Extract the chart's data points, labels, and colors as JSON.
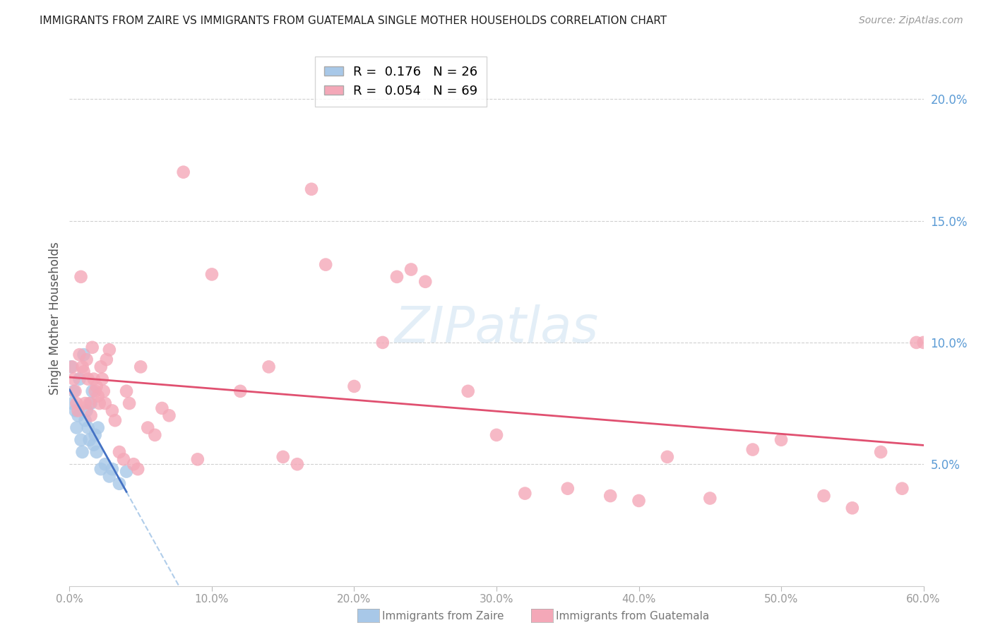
{
  "title": "IMMIGRANTS FROM ZAIRE VS IMMIGRANTS FROM GUATEMALA SINGLE MOTHER HOUSEHOLDS CORRELATION CHART",
  "source": "Source: ZipAtlas.com",
  "ylabel": "Single Mother Households",
  "xlim": [
    0.0,
    0.6
  ],
  "ylim": [
    0.0,
    0.22
  ],
  "zaire_R": 0.176,
  "zaire_N": 26,
  "guatemala_R": 0.054,
  "guatemala_N": 69,
  "zaire_color": "#a8c8e8",
  "guatemala_color": "#f4a8b8",
  "zaire_line_color": "#4472c4",
  "zaire_dash_color": "#a8c8e8",
  "guatemala_line_color": "#e05070",
  "bg_color": "#ffffff",
  "grid_color": "#d0d0d0",
  "tick_color_right": "#5b9bd5",
  "zaire_x": [
    0.001,
    0.002,
    0.003,
    0.004,
    0.005,
    0.006,
    0.007,
    0.008,
    0.009,
    0.01,
    0.011,
    0.012,
    0.013,
    0.014,
    0.015,
    0.016,
    0.017,
    0.018,
    0.019,
    0.02,
    0.022,
    0.025,
    0.028,
    0.03,
    0.035,
    0.04
  ],
  "zaire_y": [
    0.09,
    0.075,
    0.08,
    0.072,
    0.065,
    0.07,
    0.085,
    0.06,
    0.055,
    0.095,
    0.068,
    0.072,
    0.065,
    0.06,
    0.075,
    0.08,
    0.058,
    0.062,
    0.055,
    0.065,
    0.048,
    0.05,
    0.045,
    0.048,
    0.042,
    0.047
  ],
  "guatemala_x": [
    0.002,
    0.003,
    0.004,
    0.005,
    0.006,
    0.007,
    0.008,
    0.009,
    0.01,
    0.011,
    0.012,
    0.013,
    0.014,
    0.015,
    0.016,
    0.017,
    0.018,
    0.019,
    0.02,
    0.021,
    0.022,
    0.023,
    0.024,
    0.025,
    0.026,
    0.028,
    0.03,
    0.032,
    0.035,
    0.038,
    0.04,
    0.042,
    0.045,
    0.048,
    0.05,
    0.055,
    0.06,
    0.065,
    0.07,
    0.08,
    0.09,
    0.1,
    0.12,
    0.14,
    0.15,
    0.16,
    0.17,
    0.18,
    0.2,
    0.22,
    0.23,
    0.24,
    0.25,
    0.28,
    0.3,
    0.32,
    0.35,
    0.38,
    0.4,
    0.42,
    0.45,
    0.48,
    0.5,
    0.53,
    0.55,
    0.57,
    0.585,
    0.595,
    0.6
  ],
  "guatemala_y": [
    0.09,
    0.085,
    0.08,
    0.075,
    0.072,
    0.095,
    0.127,
    0.09,
    0.088,
    0.075,
    0.093,
    0.085,
    0.075,
    0.07,
    0.098,
    0.085,
    0.08,
    0.082,
    0.078,
    0.075,
    0.09,
    0.085,
    0.08,
    0.075,
    0.093,
    0.097,
    0.072,
    0.068,
    0.055,
    0.052,
    0.08,
    0.075,
    0.05,
    0.048,
    0.09,
    0.065,
    0.062,
    0.073,
    0.07,
    0.17,
    0.052,
    0.128,
    0.08,
    0.09,
    0.053,
    0.05,
    0.163,
    0.132,
    0.082,
    0.1,
    0.127,
    0.13,
    0.125,
    0.08,
    0.062,
    0.038,
    0.04,
    0.037,
    0.035,
    0.053,
    0.036,
    0.056,
    0.06,
    0.037,
    0.032,
    0.055,
    0.04,
    0.1,
    0.1
  ],
  "watermark": "ZIPatlas",
  "xtick_labels": [
    "0.0%",
    "10.0%",
    "20.0%",
    "30.0%",
    "40.0%",
    "50.0%",
    "60.0%"
  ],
  "ytick_labels_right": [
    "5.0%",
    "10.0%",
    "15.0%",
    "20.0%"
  ],
  "ytick_vals": [
    0.05,
    0.1,
    0.15,
    0.2
  ]
}
